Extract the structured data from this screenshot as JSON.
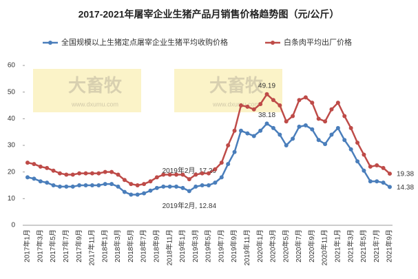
{
  "chart_data": {
    "type": "line",
    "title": "2017-2021年屠宰企业生猪产品月销售价格趋势图（元/公斤）",
    "watermark": {
      "logo": "大畜牧",
      "url": "www.dxumu.com"
    },
    "categories": [
      "2017年1月",
      null,
      "2017年3月",
      null,
      "2017年5月",
      null,
      "2017年7月",
      null,
      "2017年9月",
      null,
      "2017年11月",
      null,
      "2018年1月",
      null,
      "2018年3月",
      null,
      "2018年5月",
      null,
      "2018年7月",
      null,
      "2018年9月",
      null,
      "2018年11月",
      null,
      "2019年1月",
      null,
      "2019年3月",
      null,
      "2019年5月",
      null,
      "2019年7月",
      null,
      "2019年9月",
      null,
      "2019年11月",
      null,
      "2020年1月",
      null,
      "2020年3月",
      null,
      "2020年5月",
      null,
      "2020年7月",
      null,
      "2020年9月",
      null,
      "2020年11月",
      null,
      "2021年1月",
      null,
      "2021年3月",
      null,
      "2021年5月",
      null,
      "2021年7月",
      null,
      "2021年9月"
    ],
    "series": [
      {
        "name": "全国规模以上生猪定点屠宰企业生猪平均收购价格",
        "color": "#4a7ebb",
        "values": [
          18,
          17.5,
          16.5,
          16,
          15,
          14.5,
          14.5,
          14.5,
          15,
          15,
          15,
          15,
          15.5,
          15.5,
          14.5,
          12.5,
          11.5,
          11.5,
          12,
          13,
          14,
          14.5,
          14.5,
          14.5,
          14,
          12.84,
          14.5,
          15,
          15,
          16,
          18,
          23,
          27.5,
          35.5,
          34.5,
          33.5,
          35.5,
          38.18,
          36.5,
          34,
          30,
          32.5,
          37,
          37.5,
          36,
          32,
          30.5,
          34,
          36.5,
          32,
          28.5,
          24,
          20.5,
          16.5,
          16.5,
          16,
          14.38
        ],
        "value_labels": [
          null,
          null,
          null,
          null,
          null,
          null,
          null,
          null,
          null,
          null,
          null,
          null,
          null,
          null,
          null,
          null,
          null,
          null,
          null,
          null,
          null,
          null,
          null,
          null,
          null,
          "2019年2月, 12.84",
          null,
          null,
          null,
          null,
          null,
          null,
          null,
          null,
          null,
          null,
          null,
          "38.18",
          null,
          null,
          null,
          null,
          null,
          null,
          null,
          null,
          null,
          null,
          null,
          null,
          null,
          null,
          null,
          null,
          null,
          null,
          "14.38"
        ]
      },
      {
        "name": "白条肉平均出厂价格",
        "color": "#be4b48",
        "values": [
          23.5,
          23,
          22,
          21.5,
          20.5,
          19.5,
          19,
          19,
          19.5,
          19.5,
          19.5,
          19.5,
          20,
          20,
          19,
          17,
          15.5,
          15,
          15.5,
          16.5,
          18,
          19,
          19,
          19,
          19,
          17.29,
          19,
          19.5,
          19.5,
          21,
          23.5,
          30,
          35.5,
          45,
          44.5,
          43.5,
          45.5,
          49.19,
          47,
          45,
          39,
          41,
          47,
          48,
          46,
          40,
          39,
          43.5,
          46,
          41,
          36.5,
          31,
          26.5,
          22,
          22.5,
          21.5,
          19.38
        ],
        "value_labels": [
          null,
          null,
          null,
          null,
          null,
          null,
          null,
          null,
          null,
          null,
          null,
          null,
          null,
          null,
          null,
          null,
          null,
          null,
          null,
          null,
          null,
          null,
          null,
          null,
          null,
          "2019年2月, 17.29",
          null,
          null,
          null,
          null,
          null,
          null,
          null,
          null,
          null,
          null,
          null,
          "49.19",
          null,
          null,
          null,
          null,
          null,
          null,
          null,
          null,
          null,
          null,
          null,
          null,
          null,
          null,
          null,
          null,
          null,
          null,
          "19.38"
        ]
      }
    ],
    "ylim": [
      0,
      60
    ],
    "yticks": [
      0,
      10,
      20,
      30,
      40,
      50,
      60
    ],
    "grid": false
  }
}
